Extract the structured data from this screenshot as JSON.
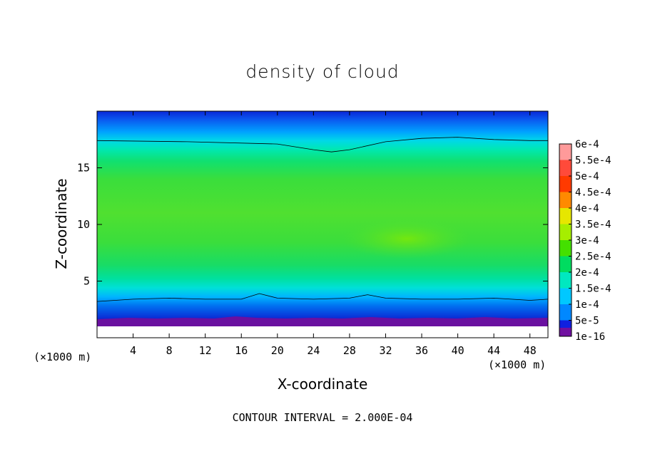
{
  "chart_data": {
    "type": "heatmap",
    "title": "density of cloud",
    "xlabel": "X-coordinate",
    "ylabel": "Z-coordinate",
    "x_unit_label": "(×1000 m)",
    "xlim": [
      0,
      50
    ],
    "ylim": [
      0,
      20
    ],
    "x_ticks": [
      4,
      8,
      12,
      16,
      20,
      24,
      28,
      32,
      36,
      40,
      44,
      48
    ],
    "y_ticks": [
      5,
      10,
      15
    ],
    "contour_interval_text": "CONTOUR INTERVAL = 2.000E-04",
    "colorbar": {
      "labels": [
        "6e-4",
        "5.5e-4",
        "5e-4",
        "4.5e-4",
        "4e-4",
        "3.5e-4",
        "3e-4",
        "2.5e-4",
        "2e-4",
        "1.5e-4",
        "1e-4",
        "5e-5",
        "1e-16"
      ],
      "colors": [
        "#ff9a9a",
        "#ff4a3a",
        "#ff3a00",
        "#ff8a00",
        "#e6e600",
        "#a6ee00",
        "#44e000",
        "#00dc60",
        "#00e8c0",
        "#00c8ff",
        "#0088ff",
        "#1020e0",
        "#7010a0"
      ]
    },
    "contour_line_z": {
      "upper": {
        "x": [
          0,
          10,
          20,
          24,
          26,
          28,
          32,
          36,
          40,
          44,
          48,
          50
        ],
        "z": [
          17.4,
          17.3,
          17.1,
          16.6,
          16.4,
          16.6,
          17.3,
          17.6,
          17.7,
          17.5,
          17.4,
          17.4
        ]
      },
      "lower": {
        "x": [
          0,
          4,
          8,
          12,
          16,
          18,
          20,
          24,
          28,
          30,
          32,
          36,
          40,
          44,
          48,
          50
        ],
        "z": [
          3.2,
          3.4,
          3.5,
          3.4,
          3.4,
          3.9,
          3.5,
          3.4,
          3.5,
          3.8,
          3.5,
          3.4,
          3.4,
          3.5,
          3.3,
          3.4
        ]
      }
    }
  }
}
